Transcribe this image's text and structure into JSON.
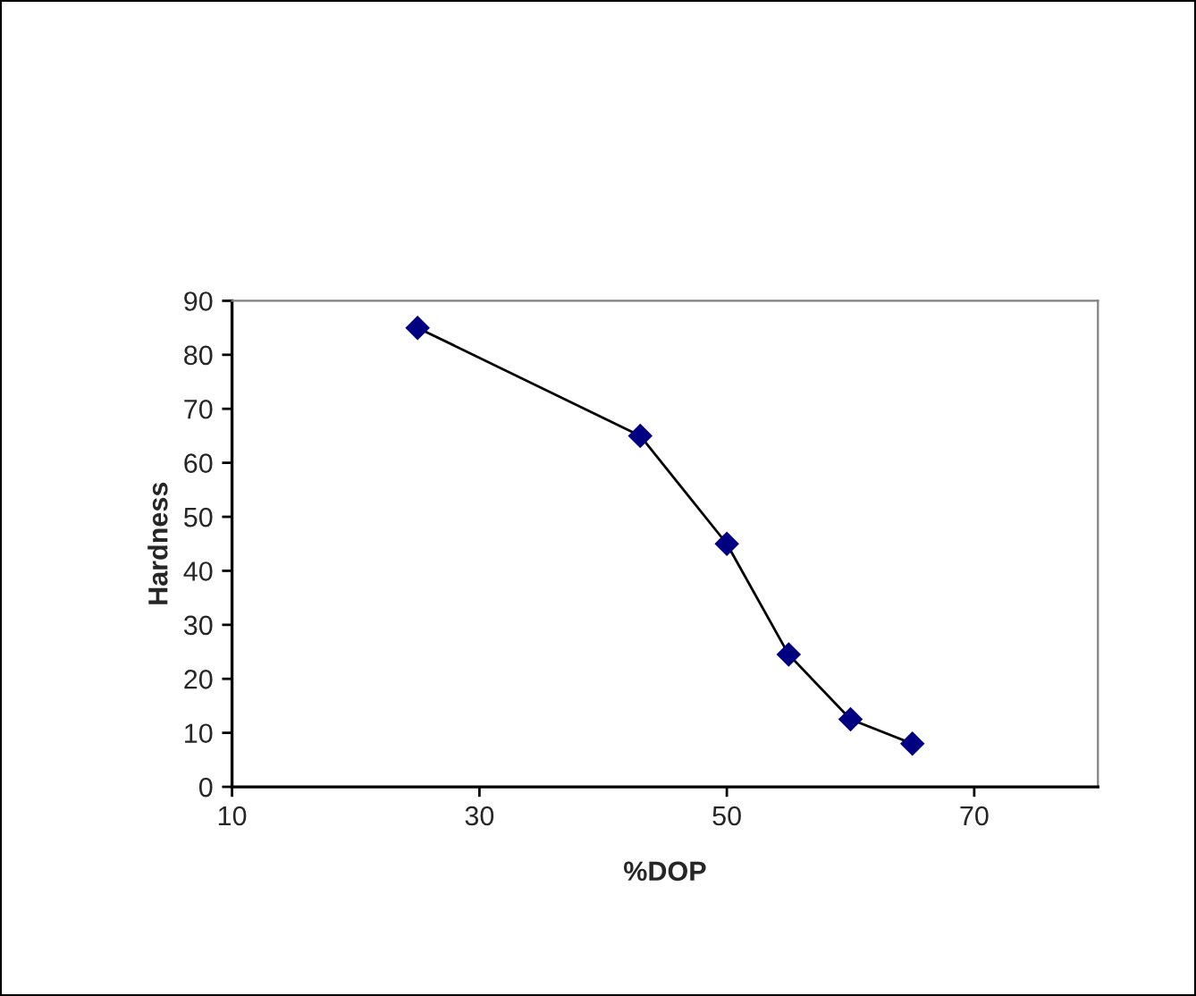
{
  "chart_data": {
    "type": "line",
    "xlabel": "%DOP",
    "ylabel": "Hardness",
    "x": [
      25,
      43,
      50,
      55,
      60,
      65
    ],
    "series": [
      {
        "color": "#000080",
        "values": [
          85,
          65,
          45,
          24.5,
          12.5,
          8
        ]
      }
    ],
    "xlim": [
      10,
      80
    ],
    "xticks": [
      10,
      30,
      50,
      70
    ],
    "ylim": [
      0,
      90
    ],
    "yticks": [
      0,
      10,
      20,
      30,
      40,
      50,
      60,
      70,
      80,
      90
    ],
    "marker": "diamond",
    "line_style": "solid",
    "grid": false,
    "legend": false
  }
}
